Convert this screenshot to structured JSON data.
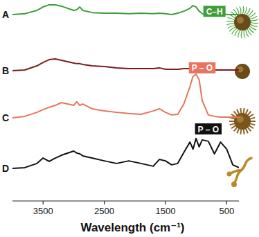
{
  "chart_data": {
    "type": "line",
    "x_label": "Wavelength (cm⁻¹)",
    "x": [
      4000,
      3800,
      3600,
      3500,
      3400,
      3300,
      3200,
      3000,
      2950,
      2900,
      2850,
      2700,
      2500,
      2300,
      2100,
      1900,
      1700,
      1600,
      1500,
      1400,
      1300,
      1200,
      1100,
      1050,
      1000,
      950,
      900,
      800,
      700,
      600,
      500,
      400,
      300
    ],
    "xlim": [
      4000,
      300
    ],
    "xticks": [
      3500,
      2500,
      1500,
      500
    ],
    "ylim": [
      0,
      100
    ],
    "tick_labels": "x",
    "grid": false,
    "series": [
      {
        "name": "A",
        "color": "#3f9e3a",
        "values": [
          93.4,
          93.8,
          95.5,
          97.2,
          98.3,
          98.3,
          97.6,
          95.5,
          95.8,
          97.2,
          95.5,
          94.4,
          94.1,
          94.1,
          93.8,
          94.1,
          93.8,
          94.1,
          93.8,
          93.4,
          94.1,
          95.1,
          96.5,
          97.9,
          97.2,
          95.1,
          93.8,
          93.1,
          93.8,
          93.8,
          93.4,
          93.4,
          93.4
        ]
      },
      {
        "name": "B",
        "color": "#7b1c1c",
        "values": [
          65.3,
          65.6,
          67.7,
          69.4,
          70.8,
          71.2,
          70.5,
          69.1,
          68.8,
          68.8,
          68.4,
          67.7,
          67.4,
          66.7,
          66.3,
          66.3,
          66.3,
          66.7,
          66.0,
          66.0,
          66.0,
          66.3,
          66.3,
          66.0,
          66.0,
          65.6,
          66.0,
          65.6,
          65.6,
          65.6,
          65.6,
          65.6,
          65.6
        ]
      },
      {
        "name": "C",
        "color": "#e8735e",
        "values": [
          41.7,
          42.4,
          44.4,
          45.8,
          46.9,
          47.9,
          49.3,
          47.9,
          49.7,
          47.9,
          48.6,
          46.2,
          45.1,
          44.4,
          43.8,
          43.4,
          45.1,
          46.2,
          44.4,
          43.1,
          43.4,
          48.6,
          57.3,
          62.5,
          63.5,
          60.8,
          50.3,
          43.1,
          42.4,
          42.0,
          42.0,
          42.0,
          42.0
        ]
      },
      {
        "name": "D",
        "color": "#111111",
        "values": [
          16.3,
          16.7,
          18.8,
          21.5,
          19.8,
          21.5,
          22.9,
          25.0,
          24.0,
          23.6,
          22.6,
          21.5,
          20.1,
          18.8,
          20.1,
          18.8,
          17.4,
          20.8,
          20.1,
          18.1,
          18.8,
          24.3,
          29.5,
          26.0,
          31.3,
          27.1,
          30.6,
          29.9,
          23.6,
          29.5,
          26.0,
          18.1,
          16.7
        ]
      }
    ],
    "annotations": [
      {
        "text": "C–H",
        "color": "#3f9e3a",
        "x": 700,
        "y": 95
      },
      {
        "text": "P – O",
        "color": "#e8735e",
        "x": 900,
        "y": 66.7
      },
      {
        "text": "P – O",
        "color": "#111111",
        "x": 800,
        "y": 36.1
      }
    ]
  }
}
